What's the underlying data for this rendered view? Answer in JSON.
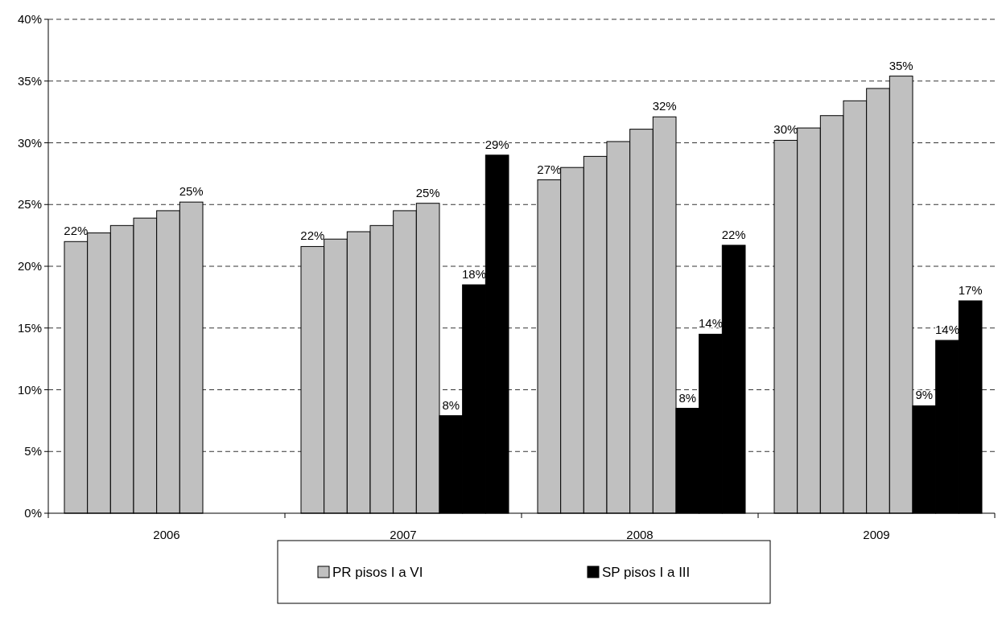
{
  "chart_data": {
    "type": "bar",
    "categories": [
      "2006",
      "2007",
      "2008",
      "2009"
    ],
    "series": [
      {
        "name": "PR pisos I a VI",
        "color": "#c0c0c0",
        "values": [
          22.0,
          21.6,
          27.0,
          30.2
        ],
        "value_labels": [
          "22%",
          "22%",
          "27%",
          "30%"
        ]
      },
      {
        "color": "#c0c0c0",
        "values": [
          22.7,
          22.2,
          28.0,
          31.2
        ]
      },
      {
        "color": "#c0c0c0",
        "values": [
          23.3,
          22.8,
          28.9,
          32.2
        ]
      },
      {
        "color": "#c0c0c0",
        "values": [
          23.9,
          23.3,
          30.1,
          33.4
        ]
      },
      {
        "color": "#c0c0c0",
        "values": [
          24.5,
          24.5,
          31.1,
          34.4
        ]
      },
      {
        "color": "#c0c0c0",
        "values": [
          25.2,
          25.1,
          32.1,
          35.4
        ],
        "value_labels": [
          "25%",
          "25%",
          "32%",
          "35%"
        ]
      },
      {
        "name": "SP pisos I a III",
        "color": "#000000",
        "values": [
          null,
          7.9,
          8.5,
          8.7
        ],
        "value_labels": [
          null,
          "8%",
          "8%",
          "9%"
        ]
      },
      {
        "color": "#000000",
        "values": [
          null,
          18.5,
          14.5,
          14.0
        ],
        "value_labels": [
          null,
          "18%",
          "14%",
          "14%"
        ]
      },
      {
        "color": "#000000",
        "values": [
          null,
          29.0,
          21.7,
          17.2
        ],
        "value_labels": [
          null,
          "29%",
          "22%",
          "17%"
        ]
      }
    ],
    "ylim": [
      0,
      40
    ],
    "yticks": [
      {
        "value": 0,
        "label": "0%"
      },
      {
        "value": 5,
        "label": "5%"
      },
      {
        "value": 10,
        "label": "10%"
      },
      {
        "value": 15,
        "label": "15%"
      },
      {
        "value": 20,
        "label": "20%"
      },
      {
        "value": 25,
        "label": "25%"
      },
      {
        "value": 30,
        "label": "30%"
      },
      {
        "value": 35,
        "label": "35%"
      },
      {
        "value": 40,
        "label": "40%"
      }
    ],
    "grid": "y",
    "legend": "bottom"
  }
}
